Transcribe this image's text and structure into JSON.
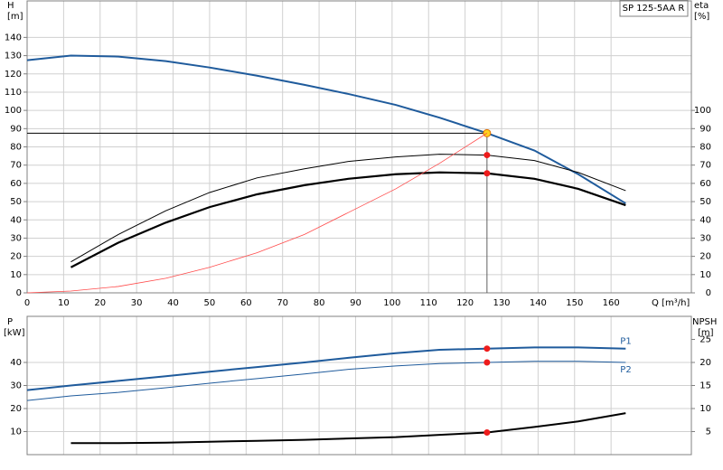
{
  "chart_data": [
    {
      "type": "line",
      "model": "SP 125-5AA R",
      "y_label": "H",
      "y_unit": "[m]",
      "y2_label": "eta",
      "y2_unit": "[%]",
      "x_label": "Q [m³/h]",
      "x": [
        0,
        12,
        25,
        38,
        50,
        63,
        76,
        88,
        101,
        113,
        126,
        139,
        151,
        164
      ],
      "xlim": [
        0,
        182
      ],
      "xticks": [
        0,
        10,
        20,
        30,
        40,
        50,
        60,
        70,
        80,
        90,
        100,
        110,
        120,
        130,
        140,
        150,
        160
      ],
      "ylim": [
        0,
        160
      ],
      "yticks": [
        0,
        10,
        20,
        30,
        40,
        50,
        60,
        70,
        80,
        90,
        100,
        110,
        120,
        130,
        140
      ],
      "y2lim": [
        0,
        160
      ],
      "y2ticks": [
        0,
        10,
        20,
        30,
        40,
        50,
        60,
        70,
        80,
        90,
        100
      ],
      "grid": true,
      "duty_point": {
        "x": 126,
        "y": 87.5
      },
      "series": [
        {
          "color": "#1f5b9c",
          "width": 2,
          "values": [
            127.5,
            130,
            129.5,
            127,
            123.5,
            119,
            114,
            109,
            103,
            96,
            87.5,
            78,
            65,
            49
          ]
        },
        {
          "color": "#000000",
          "width": 1,
          "axis": "y2",
          "values": [
            null,
            17,
            32,
            45,
            55,
            63,
            68,
            72,
            74.5,
            76,
            75.5,
            72.5,
            66,
            56
          ]
        },
        {
          "color": "#000000",
          "width": 2.2,
          "axis": "y2",
          "values": [
            null,
            14,
            27.5,
            38.5,
            47,
            54,
            59,
            62.5,
            65,
            66,
            65.5,
            62.5,
            57,
            48
          ]
        },
        {
          "color": "#ff4a4a",
          "width": 0.8,
          "values": [
            0,
            1,
            3.5,
            8,
            14,
            22,
            32,
            44,
            57,
            71,
            87.5,
            null,
            null,
            null
          ]
        }
      ]
    },
    {
      "type": "line",
      "y_label": "P",
      "y_unit": "[kW]",
      "y2_label": "NPSH",
      "y2_unit": "[m]",
      "x": [
        0,
        12,
        25,
        38,
        50,
        63,
        76,
        88,
        101,
        113,
        126,
        139,
        151,
        164
      ],
      "xlim": [
        0,
        182
      ],
      "xticks": [
        0,
        10,
        20,
        30,
        40,
        50,
        60,
        70,
        80,
        90,
        100,
        110,
        120,
        130,
        140,
        150,
        160
      ],
      "ylim": [
        0,
        60
      ],
      "yticks": [
        10,
        20,
        30,
        40
      ],
      "y2lim": [
        0,
        30
      ],
      "y2ticks": [
        5,
        10,
        15,
        20,
        25
      ],
      "grid": true,
      "series": [
        {
          "name": "P1",
          "color": "#1f5b9c",
          "width": 2,
          "values": [
            28,
            30,
            32,
            34,
            36,
            38,
            40,
            42,
            44,
            45.5,
            46,
            46.5,
            46.5,
            46
          ]
        },
        {
          "name": "P2",
          "color": "#1f5b9c",
          "width": 1,
          "values": [
            23.5,
            25.5,
            27,
            29,
            31,
            33,
            35,
            37,
            38.5,
            39.5,
            40,
            40.5,
            40.5,
            40
          ]
        },
        {
          "color": "#000000",
          "width": 2,
          "axis": "y2",
          "values": [
            null,
            2.5,
            2.5,
            2.6,
            2.8,
            3,
            3.2,
            3.5,
            3.8,
            4.3,
            4.8,
            6,
            7.2,
            9
          ]
        }
      ]
    }
  ]
}
